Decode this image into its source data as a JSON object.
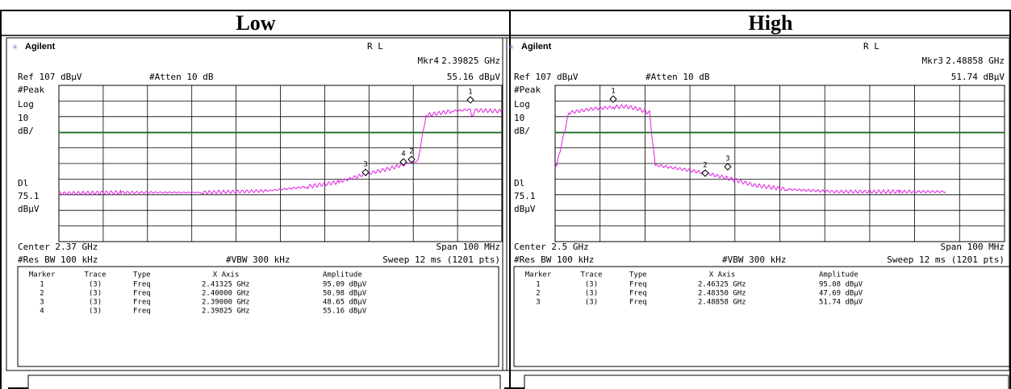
{
  "panels": [
    {
      "title": "Low",
      "brand": "Agilent",
      "mode": "R L",
      "marker_name": "Mkr4",
      "marker_freq": "2.39825 GHz",
      "ref": "Ref 107 dBµV",
      "atten": "#Atten 10 dB",
      "marker_amp": "55.16 dBµV",
      "side_labels": [
        "#Peak",
        "Log",
        "10",
        "dB/",
        "Dl",
        "75.1",
        "dBµV"
      ],
      "center": "Center 2.37 GHz",
      "span": "Span 100 MHz",
      "res_bw": "#Res BW 100 kHz",
      "vbw": "#VBW 300 kHz",
      "sweep": "Sweep 12 ms (1201 pts)",
      "table": {
        "headers": [
          "Marker",
          "Trace",
          "Type",
          "X Axis",
          "Amplitude"
        ],
        "rows": [
          [
            "1",
            "(3)",
            "Freq",
            "2.41325 GHz",
            "95.09 dBµV"
          ],
          [
            "2",
            "(3)",
            "Freq",
            "2.40000 GHz",
            "50.98 dBµV"
          ],
          [
            "3",
            "(3)",
            "Freq",
            "2.39000 GHz",
            "48.65 dBµV"
          ],
          [
            "4",
            "(3)",
            "Freq",
            "2.39825 GHz",
            "55.16 dBµV"
          ]
        ]
      },
      "marker_labels": [
        "1",
        "2",
        "3",
        "4"
      ]
    },
    {
      "title": "High",
      "brand": "Agilent",
      "mode": "R L",
      "marker_name": "Mkr3",
      "marker_freq": "2.48858 GHz",
      "ref": "Ref 107 dBµV",
      "atten": "#Atten 10 dB",
      "marker_amp": "51.74 dBµV",
      "side_labels": [
        "#Peak",
        "Log",
        "10",
        "dB/",
        "Dl",
        "75.1",
        "dBµV"
      ],
      "center": "Center 2.5 GHz",
      "span": "Span 100 MHz",
      "res_bw": "#Res BW 100 kHz",
      "vbw": "#VBW 300 kHz",
      "sweep": "Sweep 12 ms (1201 pts)",
      "table": {
        "headers": [
          "Marker",
          "Trace",
          "Type",
          "X Axis",
          "Amplitude"
        ],
        "rows": [
          [
            "1",
            "(3)",
            "Freq",
            "2.46325 GHz",
            "95.08 dBµV"
          ],
          [
            "2",
            "(3)",
            "Freq",
            "2.48350 GHz",
            "47.69 dBµV"
          ],
          [
            "3",
            "(3)",
            "Freq",
            "2.48858 GHz",
            "51.74 dBµV"
          ]
        ]
      },
      "marker_labels": [
        "1",
        "2",
        "3"
      ]
    }
  ]
}
